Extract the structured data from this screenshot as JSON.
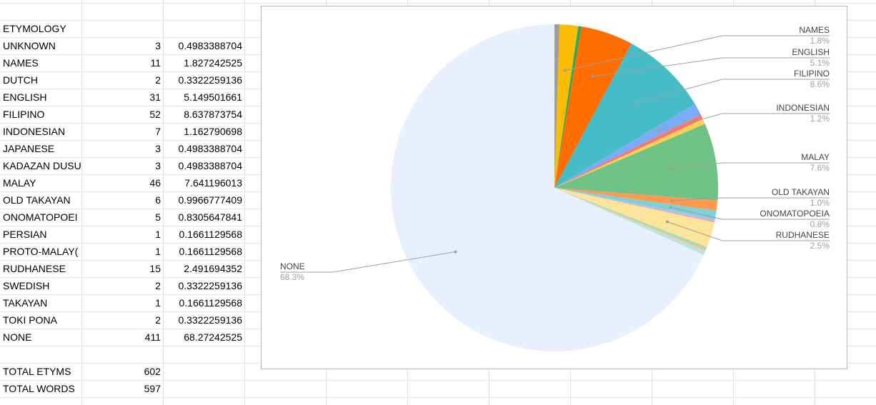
{
  "sheet": {
    "header": "ETYMOLOGY",
    "rows": [
      {
        "label": "UNKNOWN",
        "count": "3",
        "percent": "0.4983388704"
      },
      {
        "label": "NAMES",
        "count": "11",
        "percent": "1.827242525"
      },
      {
        "label": "DUTCH",
        "count": "2",
        "percent": "0.3322259136"
      },
      {
        "label": "ENGLISH",
        "count": "31",
        "percent": "5.149501661"
      },
      {
        "label": "FILIPINO",
        "count": "52",
        "percent": "8.637873754"
      },
      {
        "label": "INDONESIAN",
        "count": "7",
        "percent": "1.162790698"
      },
      {
        "label": "JAPANESE",
        "count": "3",
        "percent": "0.4983388704"
      },
      {
        "label": "KADAZAN DUSU",
        "count": "3",
        "percent": "0.4983388704"
      },
      {
        "label": "MALAY",
        "count": "46",
        "percent": "7.641196013"
      },
      {
        "label": "OLD TAKAYAN",
        "count": "6",
        "percent": "0.9966777409"
      },
      {
        "label": "ONOMATOPOEI",
        "count": "5",
        "percent": "0.8305647841"
      },
      {
        "label": "PERSIAN",
        "count": "1",
        "percent": "0.1661129568"
      },
      {
        "label": "PROTO-MALAY(",
        "count": "1",
        "percent": "0.1661129568"
      },
      {
        "label": "RUDHANESE",
        "count": "15",
        "percent": "2.491694352"
      },
      {
        "label": "SWEDISH",
        "count": "2",
        "percent": "0.3322259136"
      },
      {
        "label": "TAKAYAN",
        "count": "1",
        "percent": "0.1661129568"
      },
      {
        "label": "TOKI PONA",
        "count": "2",
        "percent": "0.3322259136"
      },
      {
        "label": "NONE",
        "count": "411",
        "percent": "68.27242525"
      }
    ],
    "totals": [
      {
        "label": "TOTAL ETYMS",
        "value": "602"
      },
      {
        "label": "TOTAL WORDS",
        "value": "597"
      }
    ]
  },
  "chart_data": {
    "type": "pie",
    "start_angle_deg": 0,
    "direction": "clockwise",
    "slices": [
      {
        "name": "UNKNOWN",
        "value": 3,
        "color": "#9e9e9e"
      },
      {
        "name": "NAMES",
        "value": 11,
        "color": "#fbbc04"
      },
      {
        "name": "DUTCH",
        "value": 2,
        "color": "#34a853"
      },
      {
        "name": "ENGLISH",
        "value": 31,
        "color": "#ff6d01"
      },
      {
        "name": "FILIPINO",
        "value": 52,
        "color": "#46bdc6"
      },
      {
        "name": "INDONESIAN",
        "value": 7,
        "color": "#7baaf7"
      },
      {
        "name": "JAPANESE",
        "value": 3,
        "color": "#f07b72"
      },
      {
        "name": "KADAZAN DUSU",
        "value": 3,
        "color": "#fcd04f"
      },
      {
        "name": "MALAY",
        "value": 46,
        "color": "#71c287"
      },
      {
        "name": "OLD TAKAYAN",
        "value": 6,
        "color": "#ff994d"
      },
      {
        "name": "ONOMATOPOEIA",
        "value": 5,
        "color": "#7ed1d7"
      },
      {
        "name": "PERSIAN",
        "value": 1,
        "color": "#a3c1fa"
      },
      {
        "name": "PROTO-MALAY",
        "value": 1,
        "color": "#f4a7a3"
      },
      {
        "name": "RUDHANESE",
        "value": 15,
        "color": "#fde49b"
      },
      {
        "name": "SWEDISH",
        "value": 2,
        "color": "#a8dab5"
      },
      {
        "name": "TAKAYAN",
        "value": 1,
        "color": "#ffc599"
      },
      {
        "name": "TOKI PONA",
        "value": 2,
        "color": "#b5e5e8"
      },
      {
        "name": "NONE",
        "value": 411,
        "color": "#e8f0fe"
      }
    ],
    "labels": [
      {
        "name": "NAMES",
        "pct": "1.8%"
      },
      {
        "name": "ENGLISH",
        "pct": "5.1%"
      },
      {
        "name": "FILIPINO",
        "pct": "8.6%"
      },
      {
        "name": "INDONESIAN",
        "pct": "1.2%"
      },
      {
        "name": "MALAY",
        "pct": "7.6%"
      },
      {
        "name": "OLD TAKAYAN",
        "pct": "1.0%"
      },
      {
        "name": "ONOMATOPOEIA",
        "pct": "0.8%"
      },
      {
        "name": "RUDHANESE",
        "pct": "2.5%"
      },
      {
        "name": "NONE",
        "pct": "68.3%"
      }
    ],
    "label_color": "#444444",
    "pct_color": "#9e9e9e",
    "leader_color": "#9e9e9e"
  }
}
